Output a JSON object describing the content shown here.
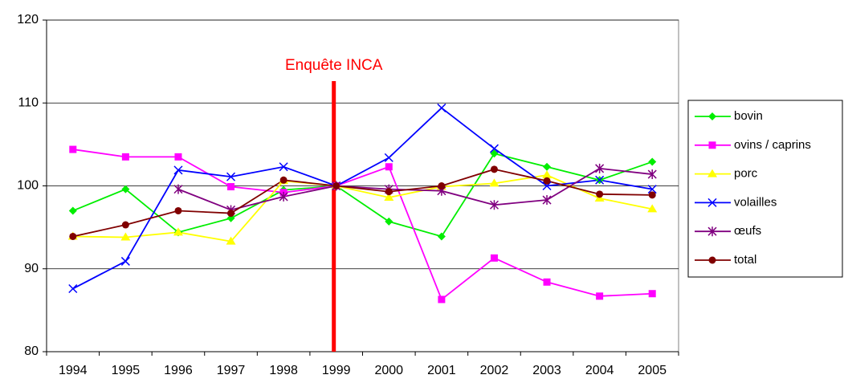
{
  "chart_data": {
    "type": "line",
    "categories": [
      "1994",
      "1995",
      "1996",
      "1997",
      "1998",
      "1999",
      "2000",
      "2001",
      "2002",
      "2003",
      "2004",
      "2005"
    ],
    "series": [
      {
        "name": "bovin",
        "color": "#00ee00",
        "marker": "diamond",
        "values": [
          97,
          99.6,
          94.4,
          96.1,
          99.5,
          100,
          95.7,
          93.9,
          103.9,
          102.3,
          100.7,
          102.9
        ]
      },
      {
        "name": "ovins / caprins",
        "color": "#ff00ff",
        "marker": "square",
        "values": [
          104.4,
          103.5,
          103.5,
          99.9,
          99.2,
          100,
          102.3,
          86.3,
          91.3,
          88.4,
          86.7,
          87.0
        ]
      },
      {
        "name": "porc",
        "color": "#ffff00",
        "marker": "triangle",
        "values": [
          93.9,
          93.8,
          94.4,
          93.3,
          100.6,
          100,
          98.6,
          99.9,
          100.3,
          101.3,
          98.5,
          97.2
        ]
      },
      {
        "name": "volailles",
        "color": "#0000ff",
        "marker": "x",
        "values": [
          87.6,
          90.9,
          101.9,
          101.1,
          102.3,
          100,
          103.4,
          109.4,
          104.5,
          100.0,
          100.7,
          99.6
        ]
      },
      {
        "name": "œufs",
        "color": "#800080",
        "marker": "star",
        "values": [
          null,
          null,
          99.6,
          97.1,
          98.7,
          100,
          99.6,
          99.4,
          97.7,
          98.3,
          102.1,
          101.4
        ]
      },
      {
        "name": "total",
        "color": "#800000",
        "marker": "circle",
        "values": [
          93.9,
          95.3,
          97.0,
          96.7,
          100.7,
          100,
          99.3,
          100.0,
          102.0,
          100.6,
          99.0,
          98.9
        ]
      }
    ],
    "ylim": [
      80,
      120
    ],
    "yticks": [
      80,
      90,
      100,
      110,
      120
    ],
    "grid": true,
    "annotation": {
      "text": "Enquête INCA",
      "x": "1999",
      "color": "#ff0000"
    },
    "legend": "right"
  }
}
